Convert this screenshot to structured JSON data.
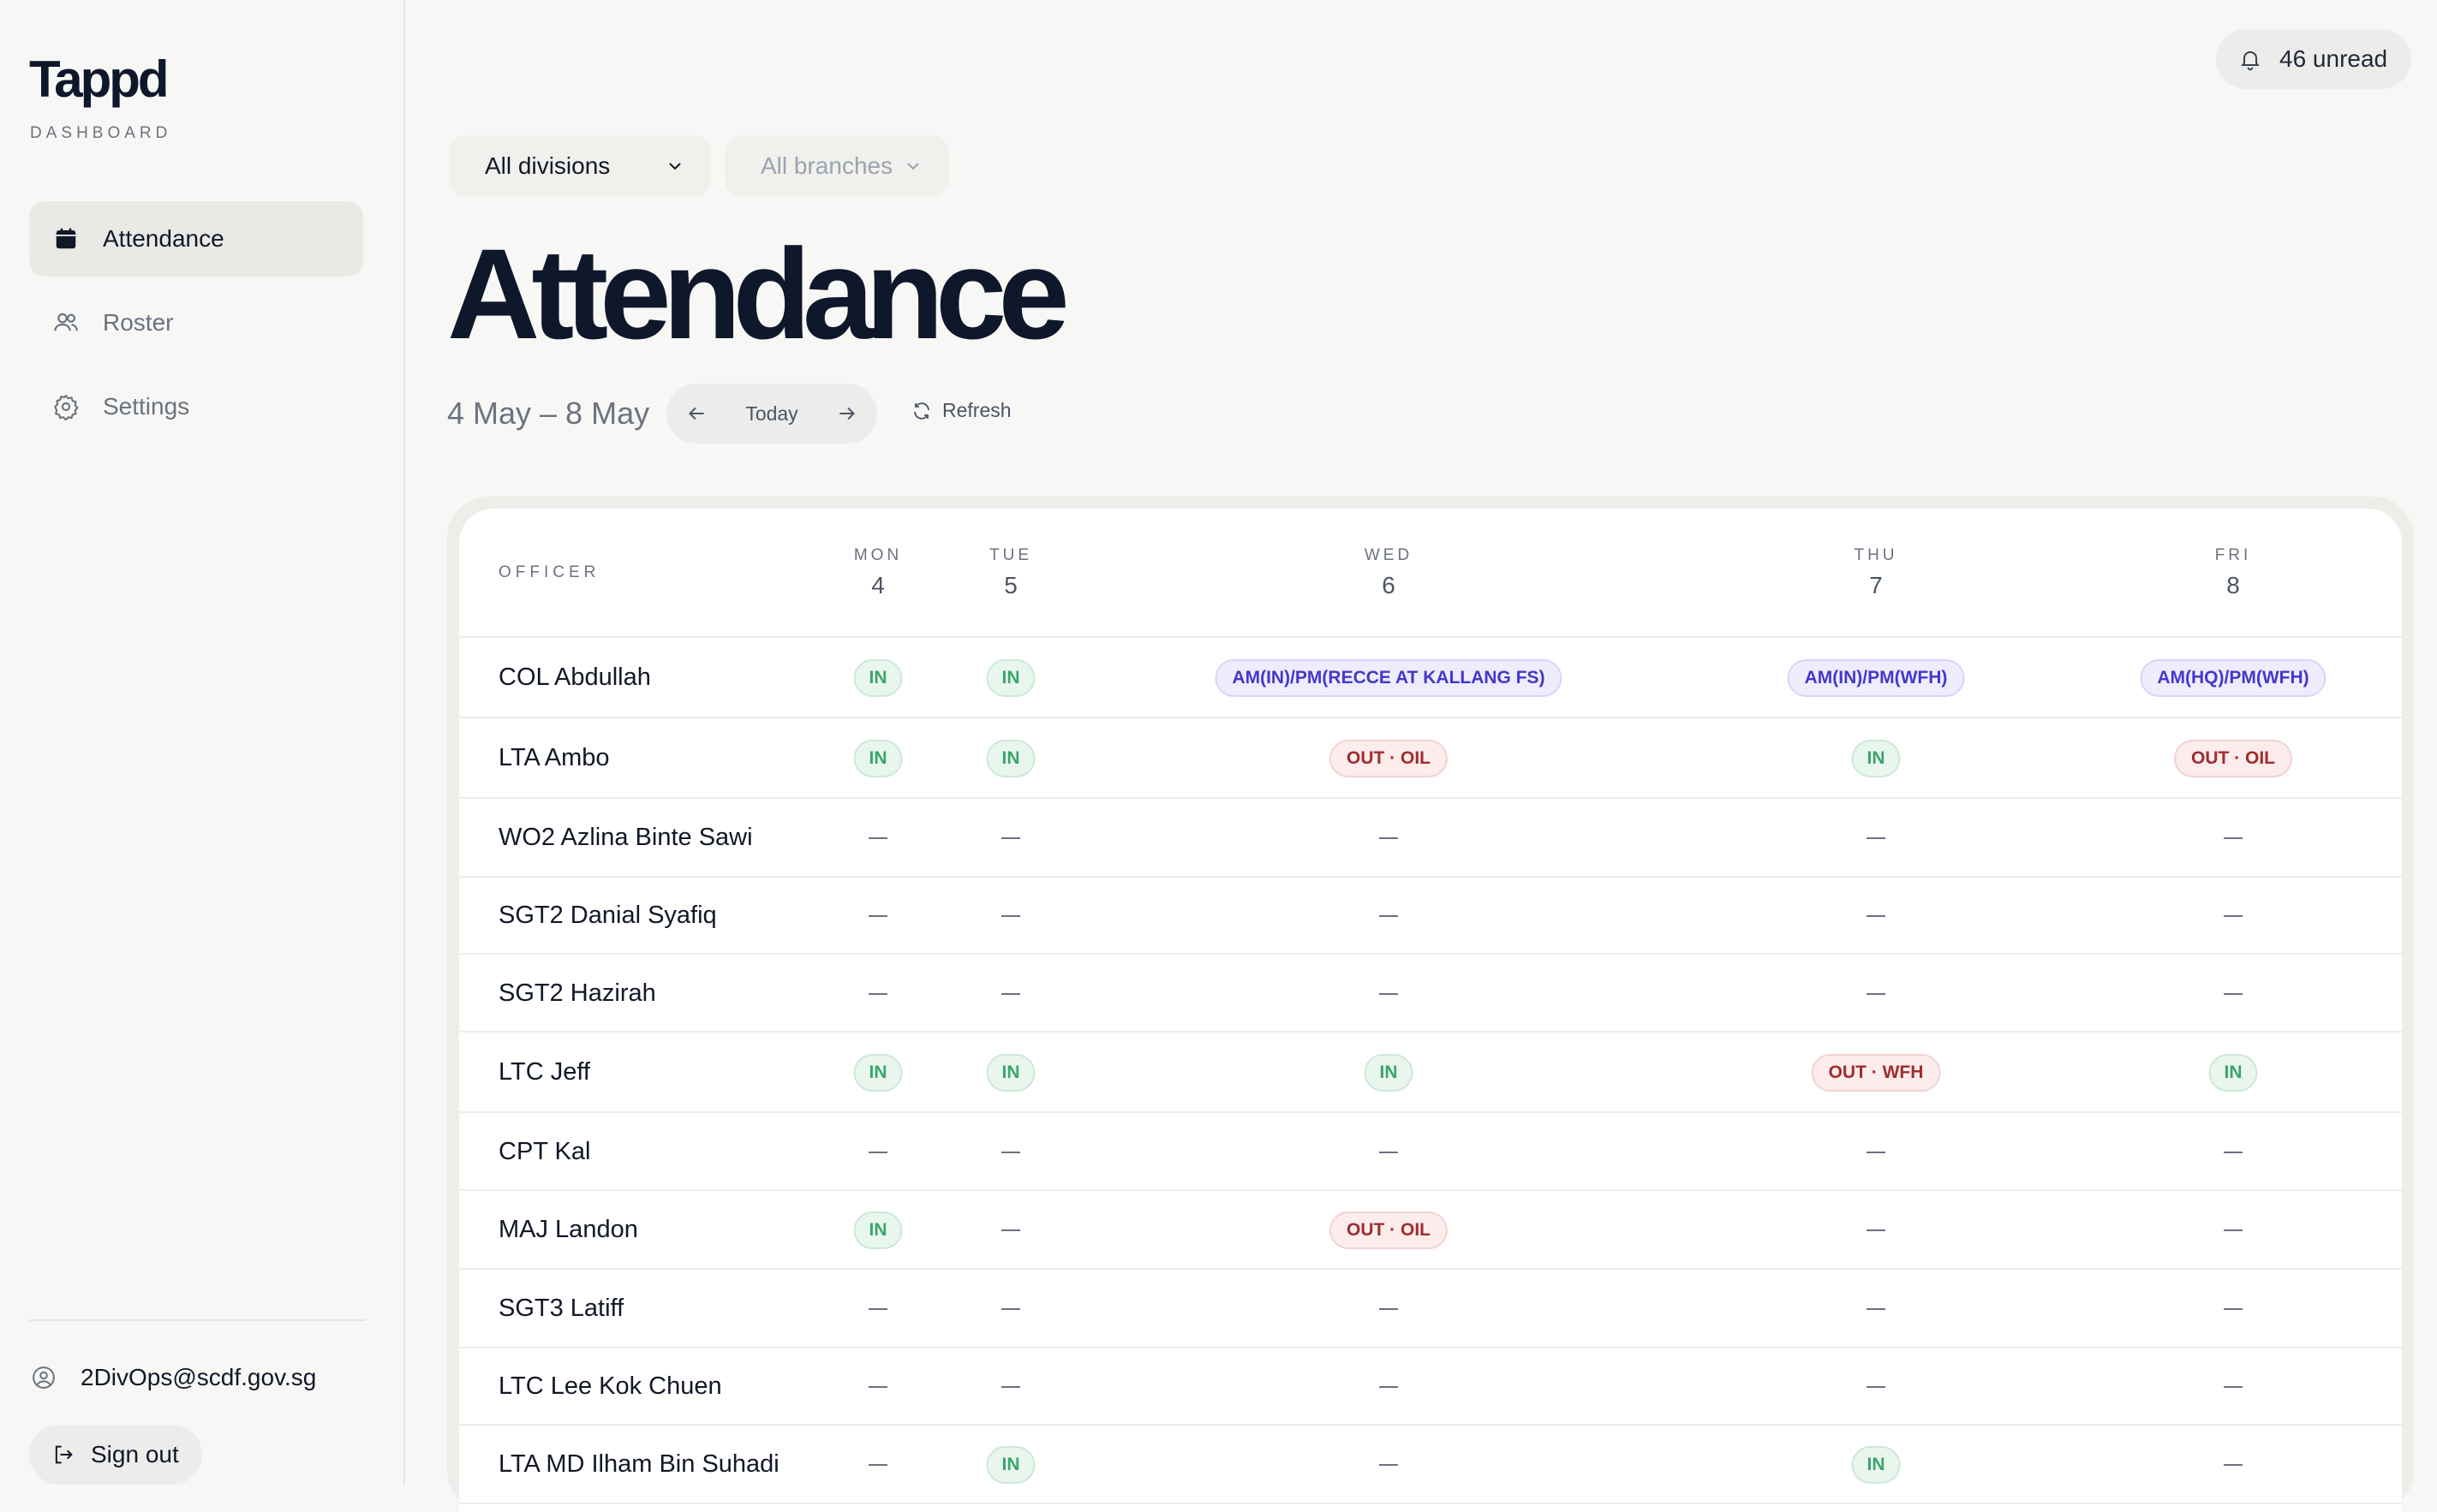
{
  "sidebar": {
    "brand": "Tappd",
    "brand_sub": "DASHBOARD",
    "nav": [
      {
        "label": "Attendance",
        "icon": "calendar-icon",
        "active": true
      },
      {
        "label": "Roster",
        "icon": "users-icon",
        "active": false
      },
      {
        "label": "Settings",
        "icon": "gear-icon",
        "active": false
      }
    ],
    "account_email": "2DivOps@scdf.gov.sg",
    "signout_label": "Sign out"
  },
  "header": {
    "unread_label": "46 unread",
    "filters": {
      "division": "All divisions",
      "branch": "All branches"
    },
    "title": "Attendance",
    "date_range": "4 May – 8 May",
    "today_label": "Today",
    "refresh_label": "Refresh"
  },
  "table": {
    "officer_header": "OFFICER",
    "days": [
      {
        "day": "MON",
        "date": "4"
      },
      {
        "day": "TUE",
        "date": "5"
      },
      {
        "day": "WED",
        "date": "6"
      },
      {
        "day": "THU",
        "date": "7"
      },
      {
        "day": "FRI",
        "date": "8"
      }
    ],
    "rows": [
      {
        "name": "COL Abdullah",
        "cells": [
          {
            "type": "in",
            "text": "IN"
          },
          {
            "type": "in",
            "text": "IN"
          },
          {
            "type": "split",
            "text": "AM(IN)/PM(RECCE AT KALLANG FS)"
          },
          {
            "type": "split",
            "text": "AM(IN)/PM(WFH)"
          },
          {
            "type": "split",
            "text": "AM(HQ)/PM(WFH)"
          }
        ]
      },
      {
        "name": "LTA Ambo",
        "cells": [
          {
            "type": "in",
            "text": "IN"
          },
          {
            "type": "in",
            "text": "IN"
          },
          {
            "type": "out",
            "text": "OUT · OIL"
          },
          {
            "type": "in",
            "text": "IN"
          },
          {
            "type": "out",
            "text": "OUT · OIL"
          }
        ]
      },
      {
        "name": "WO2 Azlina Binte Sawi",
        "cells": [
          {
            "type": "none",
            "text": ""
          },
          {
            "type": "none",
            "text": ""
          },
          {
            "type": "none",
            "text": ""
          },
          {
            "type": "none",
            "text": ""
          },
          {
            "type": "none",
            "text": ""
          }
        ]
      },
      {
        "name": "SGT2 Danial Syafiq",
        "cells": [
          {
            "type": "none",
            "text": ""
          },
          {
            "type": "none",
            "text": ""
          },
          {
            "type": "none",
            "text": ""
          },
          {
            "type": "none",
            "text": ""
          },
          {
            "type": "none",
            "text": ""
          }
        ]
      },
      {
        "name": "SGT2 Hazirah",
        "cells": [
          {
            "type": "none",
            "text": ""
          },
          {
            "type": "none",
            "text": ""
          },
          {
            "type": "none",
            "text": ""
          },
          {
            "type": "none",
            "text": ""
          },
          {
            "type": "none",
            "text": ""
          }
        ]
      },
      {
        "name": "LTC Jeff",
        "cells": [
          {
            "type": "in",
            "text": "IN"
          },
          {
            "type": "in",
            "text": "IN"
          },
          {
            "type": "in",
            "text": "IN"
          },
          {
            "type": "out",
            "text": "OUT · WFH"
          },
          {
            "type": "in",
            "text": "IN"
          }
        ]
      },
      {
        "name": "CPT Kal",
        "cells": [
          {
            "type": "none",
            "text": ""
          },
          {
            "type": "none",
            "text": ""
          },
          {
            "type": "none",
            "text": ""
          },
          {
            "type": "none",
            "text": ""
          },
          {
            "type": "none",
            "text": ""
          }
        ]
      },
      {
        "name": "MAJ Landon",
        "cells": [
          {
            "type": "in",
            "text": "IN"
          },
          {
            "type": "none",
            "text": ""
          },
          {
            "type": "out",
            "text": "OUT · OIL"
          },
          {
            "type": "none",
            "text": ""
          },
          {
            "type": "none",
            "text": ""
          }
        ]
      },
      {
        "name": "SGT3 Latiff",
        "cells": [
          {
            "type": "none",
            "text": ""
          },
          {
            "type": "none",
            "text": ""
          },
          {
            "type": "none",
            "text": ""
          },
          {
            "type": "none",
            "text": ""
          },
          {
            "type": "none",
            "text": ""
          }
        ]
      },
      {
        "name": "LTC Lee Kok Chuen",
        "cells": [
          {
            "type": "none",
            "text": ""
          },
          {
            "type": "none",
            "text": ""
          },
          {
            "type": "none",
            "text": ""
          },
          {
            "type": "none",
            "text": ""
          },
          {
            "type": "none",
            "text": ""
          }
        ]
      },
      {
        "name": "LTA MD Ilham Bin Suhadi",
        "cells": [
          {
            "type": "none",
            "text": ""
          },
          {
            "type": "in",
            "text": "IN"
          },
          {
            "type": "none",
            "text": ""
          },
          {
            "type": "in",
            "text": "IN"
          },
          {
            "type": "none",
            "text": ""
          }
        ]
      }
    ]
  },
  "colors": {
    "in": "#3aa56a",
    "out": "#9f2d2d",
    "split": "#4338ca",
    "title": "#0f172a"
  }
}
